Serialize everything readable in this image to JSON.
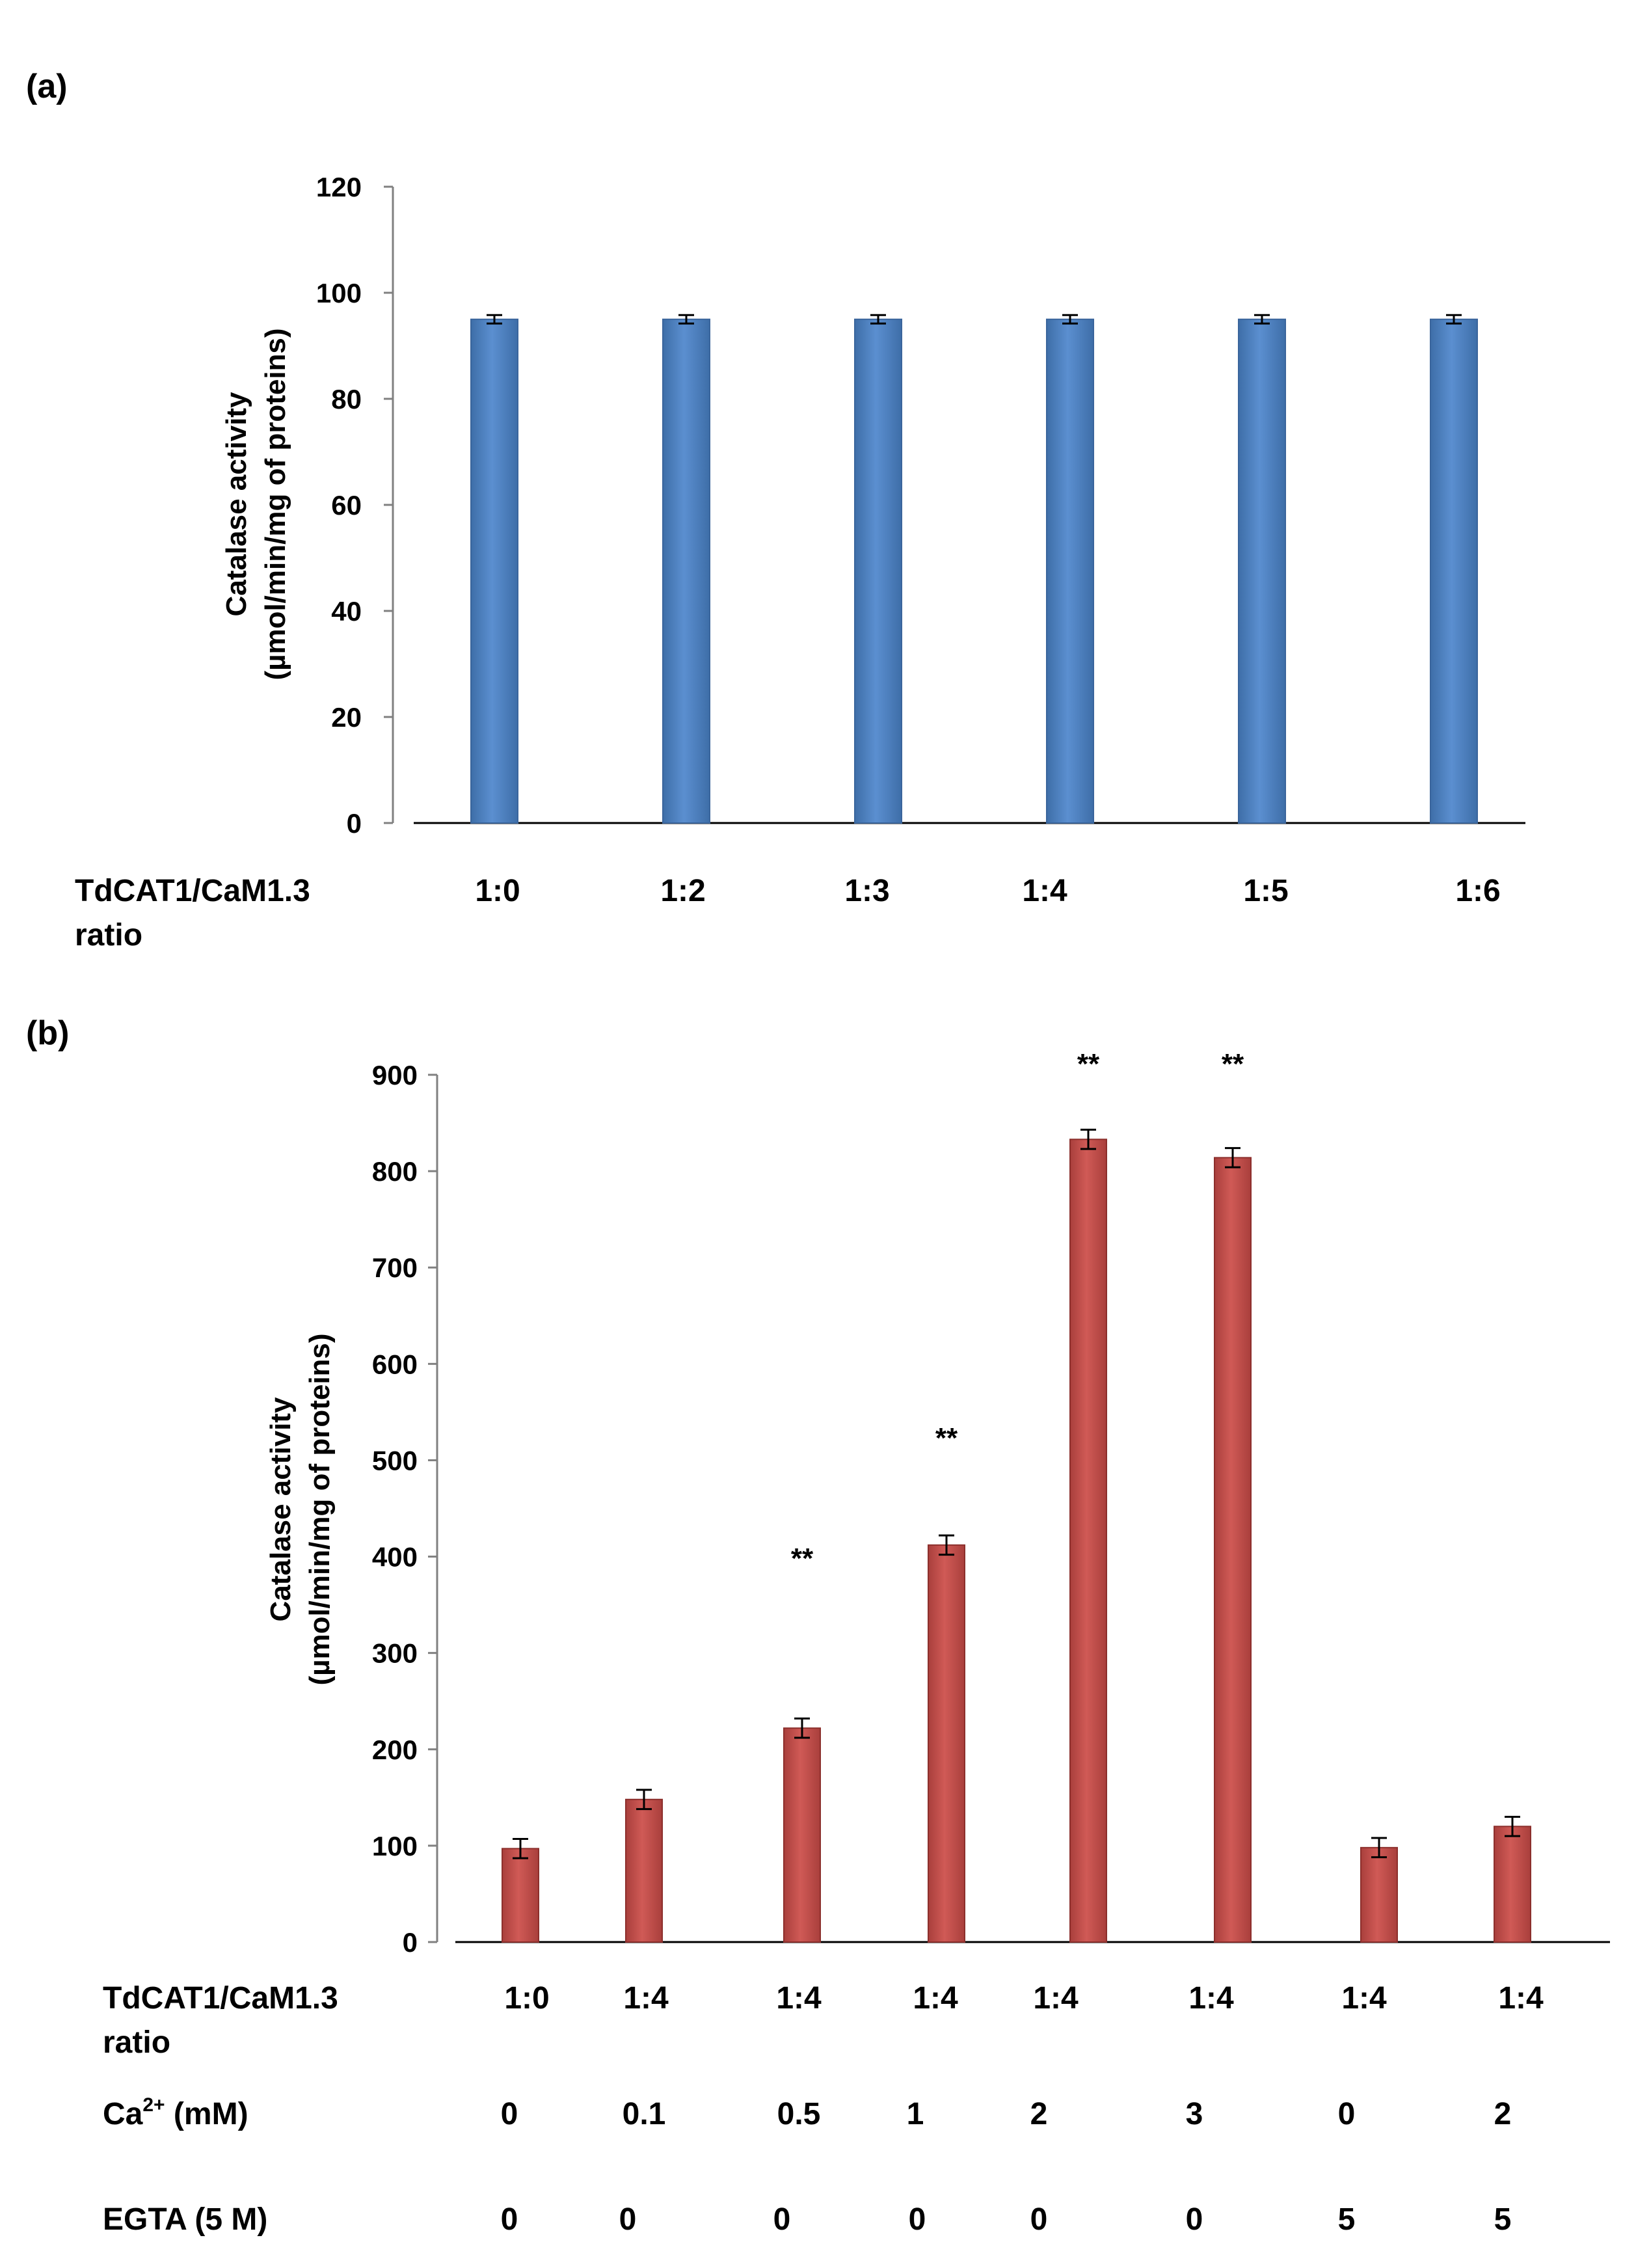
{
  "chart_data": [
    {
      "panel_label": "(a)",
      "type": "bar",
      "ylabel_line1": "Catalase activity",
      "ylabel_line2": "(µmol/min/mg of proteins)",
      "ylim": [
        0,
        120
      ],
      "yticks": [
        0,
        20,
        40,
        60,
        80,
        100,
        120
      ],
      "xrow_label_line1": "TdCAT1/CaM1.3",
      "xrow_label_line2": "ratio",
      "categories": [
        "1:0",
        "1:2",
        "1:3",
        "1:4",
        "1:5",
        "1:6"
      ],
      "values": [
        95,
        95,
        95,
        95,
        95,
        95
      ],
      "errors": [
        0.8,
        0.8,
        0.8,
        0.8,
        0.8,
        0.8
      ],
      "bar_color": "#4f81bd",
      "bar_edge_color": "#3a659c",
      "annotations": [
        "",
        "",
        "",
        "",
        "",
        ""
      ]
    },
    {
      "panel_label": "(b)",
      "type": "bar",
      "ylabel_line1": "Catalase activity",
      "ylabel_line2": "(µmol/min/mg of proteins)",
      "ylim": [
        0,
        900
      ],
      "yticks": [
        0,
        100,
        200,
        300,
        400,
        500,
        600,
        700,
        800,
        900
      ],
      "xrow_label_line1": "TdCAT1/CaM1.3",
      "xrow_label_line2": "ratio",
      "categories": [
        "1:0",
        "1:4",
        "1:4",
        "1:4",
        "1:4",
        "1:4",
        "1:4",
        "1:4"
      ],
      "values": [
        97,
        148,
        222,
        412,
        833,
        814,
        98,
        120
      ],
      "errors": [
        10,
        10,
        10,
        10,
        10,
        10,
        10,
        10
      ],
      "annotations": [
        "",
        "",
        "**",
        "**",
        "**",
        "**",
        "",
        ""
      ],
      "ca_row_label_main": "Ca",
      "ca_row_label_sup": "2+",
      "ca_row_label_unit": " (mM)",
      "ca_values": [
        "0",
        "0.1",
        "0.5",
        "1",
        "2",
        "3",
        "0",
        "2"
      ],
      "egta_row_label": "EGTA (5 M)",
      "egta_values": [
        "0",
        "0",
        "0",
        "0",
        "0",
        "0",
        "5",
        "5"
      ],
      "bar_color": "#c0504d",
      "bar_edge_color": "#8c2f2c"
    }
  ]
}
